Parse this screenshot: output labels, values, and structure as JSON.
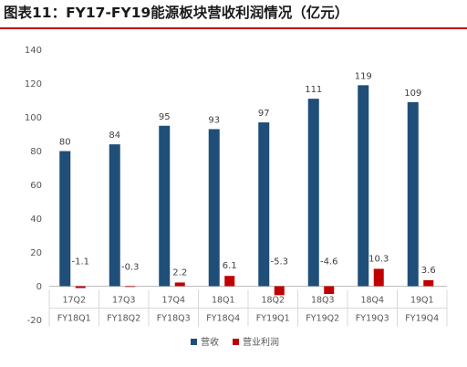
{
  "title": "图表11：FY17-FY19能源板块营收利润情况（亿元）",
  "colors": {
    "revenue": "#1F4E79",
    "profit": "#C00000",
    "title_rule": "#C00000"
  },
  "chart_data": {
    "type": "bar",
    "title": "",
    "xlabel": "",
    "ylabel": "",
    "ylim": [
      -20,
      140
    ],
    "yticks": [
      -20,
      0,
      20,
      40,
      60,
      80,
      100,
      120,
      140
    ],
    "grid": false,
    "legend_position": "bottom",
    "categories": [
      "17Q2",
      "17Q3",
      "17Q4",
      "18Q1",
      "18Q2",
      "18Q3",
      "18Q4",
      "19Q1"
    ],
    "categories_fiscal": [
      "FY18Q1",
      "FY18Q2",
      "FY18Q3",
      "FY18Q4",
      "FY19Q1",
      "FY19Q2",
      "FY19Q3",
      "FY19Q4"
    ],
    "series": [
      {
        "name": "营收",
        "values": [
          80,
          84,
          95,
          93,
          97,
          111,
          119,
          109
        ],
        "labels": [
          "80",
          "84",
          "95",
          "93",
          "97",
          "111",
          "119",
          "109"
        ]
      },
      {
        "name": "营业利润",
        "values": [
          -1.1,
          -0.3,
          2.2,
          6.1,
          -5.3,
          -4.6,
          10.3,
          3.6
        ],
        "labels": [
          "-1.1",
          "-0.3",
          "2.2",
          "6.1",
          "-5.3",
          "-4.6",
          "10.3",
          "3.6"
        ]
      }
    ]
  }
}
